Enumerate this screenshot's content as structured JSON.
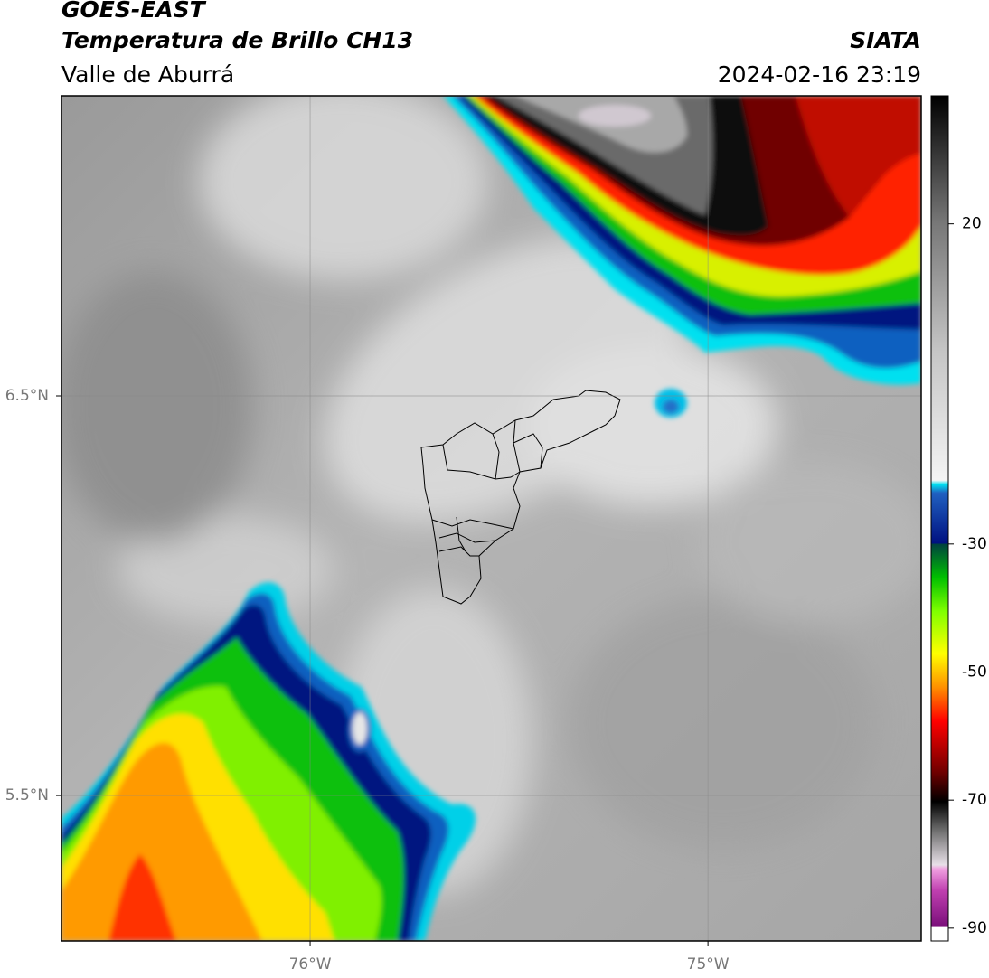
{
  "header": {
    "title": "GOES-EAST",
    "subtitle": "Temperatura de Brillo CH13",
    "region": "Valle de Aburrá",
    "source": "SIATA",
    "datetime": "2024-02-16 23:19"
  },
  "map": {
    "lon_range": [
      -76.625,
      -74.464
    ],
    "lat_range": [
      5.136,
      7.251
    ],
    "lon_ticks": [
      {
        "value": -76,
        "label": "76°W"
      },
      {
        "value": -75,
        "label": "75°W"
      }
    ],
    "lat_ticks": [
      {
        "value": 6.5,
        "label": "6.5°N"
      },
      {
        "value": 5.5,
        "label": "5.5°N"
      }
    ]
  },
  "colorbar": {
    "range": [
      -92,
      40
    ],
    "ticks": [
      20,
      -30,
      -50,
      -70,
      -90
    ]
  }
}
